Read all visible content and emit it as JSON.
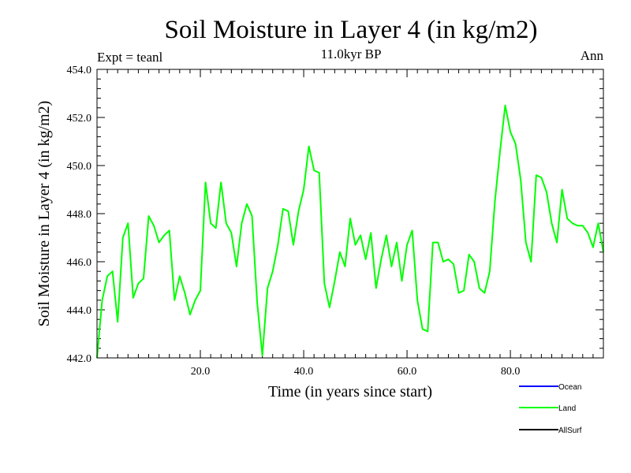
{
  "chart_data": {
    "type": "line",
    "title": "Soil Moisture in Layer 4 (in kg/m2)",
    "subtitle": "11.0kyr BP",
    "left_label": "Expt = teanl",
    "right_label": "Ann",
    "xlabel": "Time (in years since start)",
    "ylabel": "Soil Moisture in Layer 4 (in kg/m2)",
    "xlim": [
      0,
      98
    ],
    "ylim": [
      442.0,
      454.0
    ],
    "xticks": [
      20.0,
      40.0,
      60.0,
      80.0
    ],
    "xtick_labels": [
      "20.0",
      "40.0",
      "60.0",
      "80.0"
    ],
    "yticks": [
      442.0,
      444.0,
      446.0,
      448.0,
      450.0,
      452.0,
      454.0
    ],
    "ytick_labels": [
      "442.0",
      "444.0",
      "446.0",
      "448.0",
      "450.0",
      "452.0",
      "454.0"
    ],
    "legend": [
      {
        "name": "Ocean",
        "color": "#0000ff"
      },
      {
        "name": "Land",
        "color": "#00ff00"
      },
      {
        "name": "AllSurf",
        "color": "#000000"
      }
    ],
    "series": [
      {
        "name": "Land",
        "color": "#00ff00",
        "x": [
          0,
          1,
          2,
          3,
          4,
          5,
          6,
          7,
          8,
          9,
          10,
          11,
          12,
          13,
          14,
          15,
          16,
          17,
          18,
          19,
          20,
          21,
          22,
          23,
          24,
          25,
          26,
          27,
          28,
          29,
          30,
          31,
          32,
          33,
          34,
          35,
          36,
          37,
          38,
          39,
          40,
          41,
          42,
          43,
          44,
          45,
          46,
          47,
          48,
          49,
          50,
          51,
          52,
          53,
          54,
          55,
          56,
          57,
          58,
          59,
          60,
          61,
          62,
          63,
          64,
          65,
          66,
          67,
          68,
          69,
          70,
          71,
          72,
          73,
          74,
          75,
          76,
          77,
          78,
          79,
          80,
          81,
          82,
          83,
          84,
          85,
          86,
          87,
          88,
          89,
          90,
          91,
          92,
          93,
          94,
          95,
          96,
          97,
          98
        ],
        "values": [
          442.0,
          444.4,
          445.4,
          445.6,
          443.5,
          447.0,
          447.6,
          444.5,
          445.1,
          445.3,
          447.9,
          447.5,
          446.8,
          447.1,
          447.3,
          444.4,
          445.4,
          444.7,
          443.8,
          444.4,
          444.8,
          449.3,
          447.6,
          447.4,
          449.3,
          447.6,
          447.2,
          445.8,
          447.6,
          448.4,
          447.9,
          444.3,
          442.1,
          444.9,
          445.6,
          446.7,
          448.2,
          448.1,
          446.7,
          448.1,
          449.0,
          450.8,
          449.8,
          449.7,
          445.1,
          444.1,
          445.2,
          446.4,
          445.8,
          447.8,
          446.7,
          447.1,
          446.1,
          447.2,
          444.9,
          446.1,
          447.1,
          445.8,
          446.8,
          445.2,
          446.7,
          447.3,
          444.4,
          443.2,
          443.1,
          446.8,
          446.8,
          446.0,
          446.1,
          445.9,
          444.7,
          444.8,
          446.3,
          446.0,
          444.9,
          444.7,
          445.6,
          448.5,
          450.6,
          452.5,
          451.4,
          450.9,
          449.4,
          446.8,
          446.0,
          449.6,
          449.5,
          448.9,
          447.6,
          446.8,
          449.0,
          447.8,
          447.6,
          447.5,
          447.5,
          447.2,
          446.6,
          447.6,
          446.4
        ]
      }
    ]
  }
}
